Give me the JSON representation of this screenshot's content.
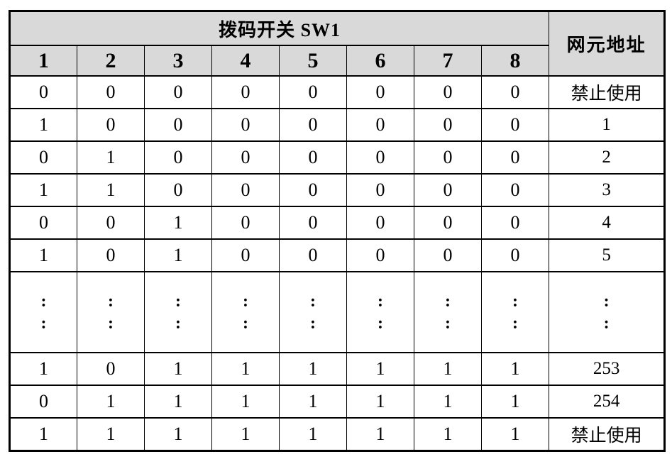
{
  "table": {
    "header": {
      "group_title": "拨码开关 SW1",
      "switch_columns": [
        "1",
        "2",
        "3",
        "4",
        "5",
        "6",
        "7",
        "8"
      ],
      "address_column": "网元地址"
    },
    "rows": [
      {
        "type": "data",
        "switches": [
          "0",
          "0",
          "0",
          "0",
          "0",
          "0",
          "0",
          "0"
        ],
        "address": "禁止使用"
      },
      {
        "type": "data",
        "switches": [
          "1",
          "0",
          "0",
          "0",
          "0",
          "0",
          "0",
          "0"
        ],
        "address": "1"
      },
      {
        "type": "data",
        "switches": [
          "0",
          "1",
          "0",
          "0",
          "0",
          "0",
          "0",
          "0"
        ],
        "address": "2"
      },
      {
        "type": "data",
        "switches": [
          "1",
          "1",
          "0",
          "0",
          "0",
          "0",
          "0",
          "0"
        ],
        "address": "3"
      },
      {
        "type": "data",
        "switches": [
          "0",
          "0",
          "1",
          "0",
          "0",
          "0",
          "0",
          "0"
        ],
        "address": "4"
      },
      {
        "type": "data",
        "switches": [
          "1",
          "0",
          "1",
          "0",
          "0",
          "0",
          "0",
          "0"
        ],
        "address": "5"
      },
      {
        "type": "ellipsis",
        "lines": 2,
        "switches": [
          ":",
          ":",
          ":",
          ":",
          ":",
          ":",
          ":",
          ":"
        ],
        "address": ":"
      },
      {
        "type": "data",
        "switches": [
          "1",
          "0",
          "1",
          "1",
          "1",
          "1",
          "1",
          "1"
        ],
        "address": "253"
      },
      {
        "type": "data",
        "switches": [
          "0",
          "1",
          "1",
          "1",
          "1",
          "1",
          "1",
          "1"
        ],
        "address": "254"
      },
      {
        "type": "data",
        "switches": [
          "1",
          "1",
          "1",
          "1",
          "1",
          "1",
          "1",
          "1"
        ],
        "address": "禁止使用"
      }
    ],
    "colors": {
      "header_bg": "#d9d9d9",
      "border": "#000000",
      "row_bg": "#ffffff",
      "text": "#000000"
    }
  }
}
